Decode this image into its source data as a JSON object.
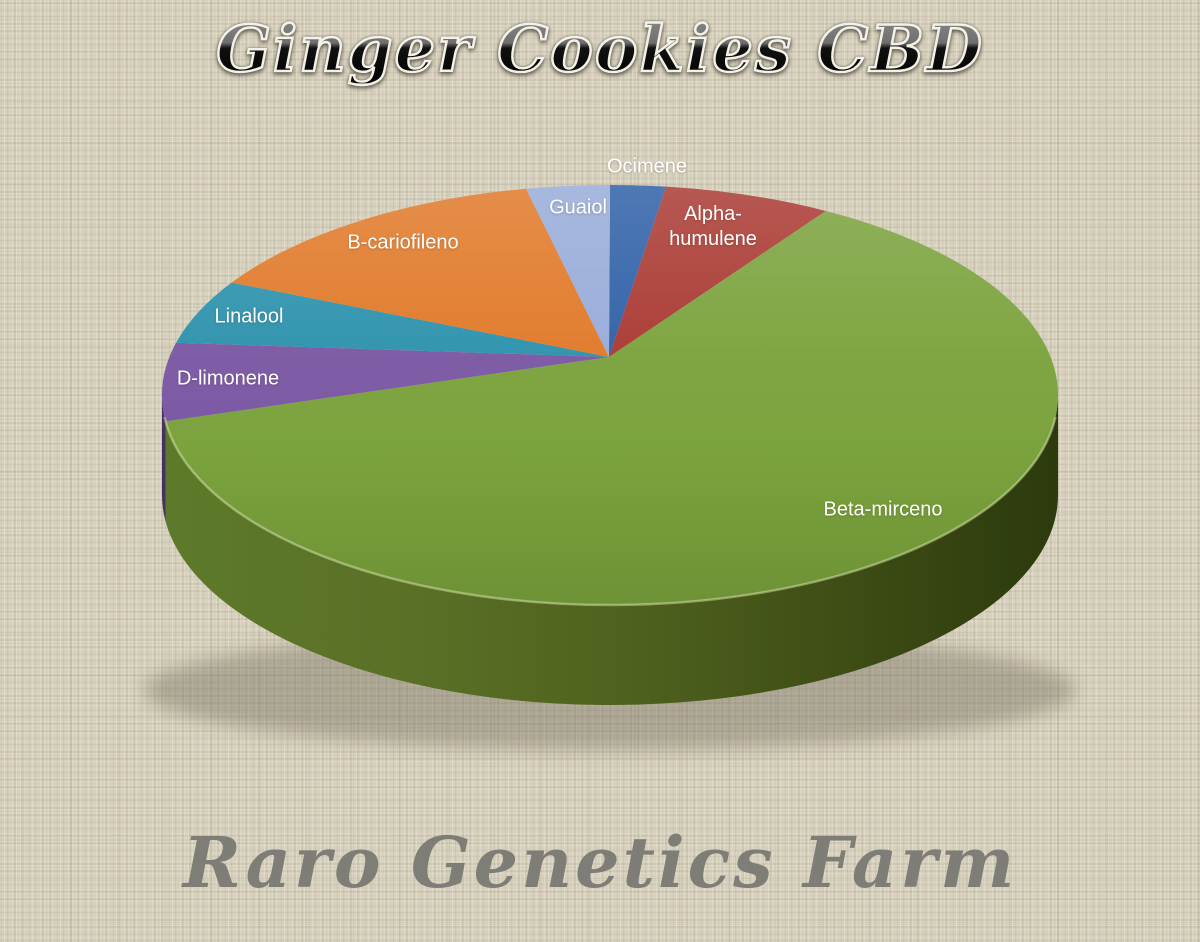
{
  "header": {
    "title": "Ginger Cookies CBD"
  },
  "footer": {
    "title": "Raro Genetics Farm"
  },
  "chart_data": {
    "type": "pie",
    "style": "3d-perspective",
    "title": "Ginger Cookies CBD",
    "subtitle": "Raro Genetics Farm",
    "unit": "percent-of-total (estimated from slice angles)",
    "start_angle_deg": 0,
    "direction": "clockwise",
    "legend_position": "none",
    "labels_on_slices": true,
    "label_color": "#ffffff",
    "slices": [
      {
        "label": "Ocimene",
        "label_lines": [
          "Ocimene"
        ],
        "value": 2,
        "color": "#2d5fa6"
      },
      {
        "label": "Alpha-humulene",
        "label_lines": [
          "Alpha-",
          "humulene"
        ],
        "value": 6,
        "color": "#a93831"
      },
      {
        "label": "Beta-mirceno",
        "label_lines": [
          "Beta-mirceno"
        ],
        "value": 65,
        "color": "#7aa23c"
      },
      {
        "label": "D-limonene",
        "label_lines": [
          "D-limonene"
        ],
        "value": 6,
        "color": "#7a57a3"
      },
      {
        "label": "Linalool",
        "label_lines": [
          "Linalool"
        ],
        "value": 5,
        "color": "#2b91ac"
      },
      {
        "label": "B-cariofileno",
        "label_lines": [
          "B-cariofileno"
        ],
        "value": 13,
        "color": "#e07827"
      },
      {
        "label": "Guaiol",
        "label_lines": [
          "Guaiol"
        ],
        "value": 3,
        "color": "#97abd9"
      }
    ]
  },
  "colors": {
    "background": "#d7d0bc",
    "title_fill_top": "#8a8a8a",
    "title_fill_bottom": "#000000",
    "title_outline": "#f4f1e6",
    "footer_text": "#7b7a74",
    "pie_side_green_stops": [
      "#5d7a2a",
      "#5a7026",
      "#4d5f1d",
      "#3b4a13",
      "#2c3a0e"
    ],
    "pie_side_purple": "#4a3464",
    "pie_shadow": "#6b6353"
  }
}
